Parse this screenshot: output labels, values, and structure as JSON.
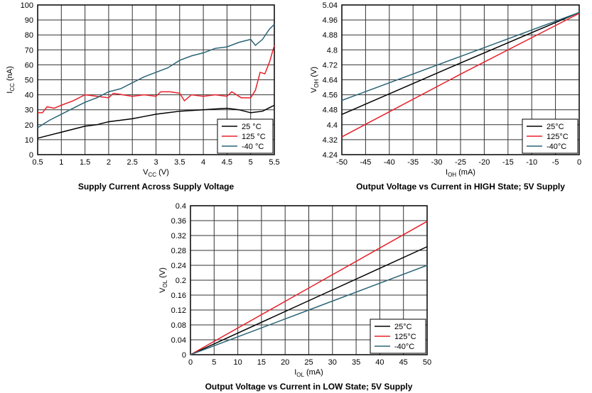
{
  "chart_data": [
    {
      "type": "line",
      "title": "Supply Current Across Supply Voltage",
      "xlabel": [
        "V",
        "CC",
        " (V)"
      ],
      "ylabel": [
        "I",
        "CC",
        " (nA)"
      ],
      "xlim": [
        0.5,
        5.5
      ],
      "xticks": [
        0.5,
        1,
        1.5,
        2,
        2.5,
        3,
        3.5,
        4,
        4.5,
        5,
        5.5
      ],
      "ylim": [
        0,
        100
      ],
      "yticks": [
        0,
        10,
        20,
        30,
        40,
        50,
        60,
        70,
        80,
        90,
        100
      ],
      "grid": true,
      "legend": "lower right",
      "series": [
        {
          "name": "25 °C",
          "color": "#000000",
          "x": [
            0.5,
            0.75,
            1,
            1.25,
            1.5,
            1.75,
            2,
            2.25,
            2.5,
            2.75,
            3,
            3.25,
            3.5,
            3.75,
            4,
            4.25,
            4.5,
            4.75,
            5,
            5.25,
            5.5
          ],
          "values": [
            11,
            13,
            15,
            17,
            19,
            20,
            22,
            23,
            24,
            25.5,
            27,
            28,
            29,
            29.5,
            30,
            30.5,
            31,
            30,
            28,
            29,
            33
          ]
        },
        {
          "name": "125 °C",
          "color": "#e8202a",
          "x": [
            0.5,
            0.6,
            0.7,
            0.85,
            1,
            1.25,
            1.5,
            1.75,
            2,
            2.1,
            2.3,
            2.5,
            2.75,
            3,
            3.1,
            3.3,
            3.5,
            3.6,
            3.75,
            4,
            4.25,
            4.5,
            4.6,
            4.8,
            5,
            5.1,
            5.2,
            5.3,
            5.4,
            5.5
          ],
          "values": [
            28,
            28,
            32,
            31,
            33,
            36,
            40,
            39,
            38,
            41,
            40,
            39,
            40,
            39,
            42,
            42,
            41,
            36,
            40,
            39,
            40,
            39,
            42,
            38,
            38,
            43,
            55,
            54,
            62,
            73
          ]
        },
        {
          "name": "-40 °C",
          "color": "#2b6577",
          "x": [
            0.5,
            0.6,
            0.75,
            1,
            1.25,
            1.5,
            1.75,
            2,
            2.25,
            2.5,
            2.75,
            3,
            3.25,
            3.5,
            3.75,
            4,
            4.25,
            4.5,
            4.75,
            5,
            5.1,
            5.25,
            5.4,
            5.5
          ],
          "values": [
            18,
            20,
            23,
            27,
            31,
            35,
            38,
            42,
            44,
            48,
            52,
            55,
            58,
            63,
            66,
            68,
            71,
            72,
            75,
            77,
            73,
            77,
            84,
            87
          ]
        }
      ]
    },
    {
      "type": "line",
      "title": "Output Voltage vs Current in HIGH State; 5V Supply",
      "xlabel": [
        "I",
        "OH",
        " (mA)"
      ],
      "ylabel": [
        "V",
        "OH",
        " (V)"
      ],
      "xlim": [
        -50,
        0
      ],
      "xticks": [
        -50,
        -45,
        -40,
        -35,
        -30,
        -25,
        -20,
        -15,
        -10,
        -5,
        0
      ],
      "ylim": [
        4.24,
        5.04
      ],
      "yticks": [
        4.24,
        4.32,
        4.4,
        4.48,
        4.56,
        4.64,
        4.72,
        4.8,
        4.88,
        4.96,
        5.04
      ],
      "grid": true,
      "legend": "lower right",
      "series": [
        {
          "name": "25°C",
          "color": "#000000",
          "x": [
            -50,
            -25,
            0
          ],
          "values": [
            4.455,
            4.73,
            5.0
          ]
        },
        {
          "name": "125°C",
          "color": "#e8202a",
          "x": [
            -50,
            -25,
            0
          ],
          "values": [
            4.335,
            4.67,
            4.995
          ]
        },
        {
          "name": "-40°C",
          "color": "#2b6577",
          "x": [
            -50,
            -25,
            0
          ],
          "values": [
            4.53,
            4.765,
            5.0
          ]
        }
      ]
    },
    {
      "type": "line",
      "title": "Output Voltage vs Current in LOW State; 5V Supply",
      "xlabel": [
        "I",
        "OL",
        " (mA)"
      ],
      "ylabel": [
        "V",
        "OL",
        " (V)"
      ],
      "xlim": [
        0,
        50
      ],
      "xticks": [
        0,
        5,
        10,
        15,
        20,
        25,
        30,
        35,
        40,
        45,
        50
      ],
      "ylim": [
        0,
        0.4
      ],
      "yticks": [
        0,
        0.04,
        0.08,
        0.12,
        0.16,
        0.2,
        0.24,
        0.28,
        0.32,
        0.36,
        0.4
      ],
      "grid": true,
      "legend": "lower right",
      "series": [
        {
          "name": "25°C",
          "color": "#000000",
          "x": [
            0,
            25,
            50
          ],
          "values": [
            0,
            0.145,
            0.29
          ]
        },
        {
          "name": "125°C",
          "color": "#e8202a",
          "x": [
            0,
            25,
            50
          ],
          "values": [
            0,
            0.179,
            0.358
          ]
        },
        {
          "name": "-40°C",
          "color": "#2b6577",
          "x": [
            0,
            25,
            50
          ],
          "values": [
            0,
            0.12,
            0.24
          ]
        }
      ]
    }
  ]
}
